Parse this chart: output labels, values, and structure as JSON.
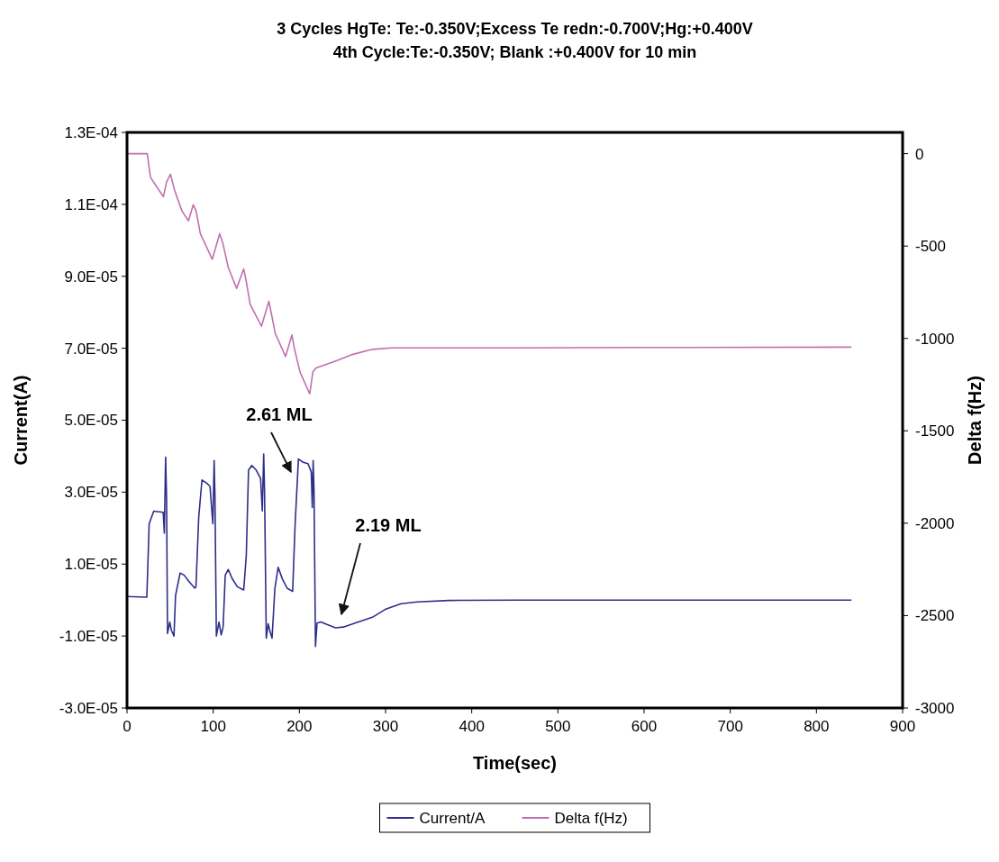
{
  "chart_data": {
    "type": "line",
    "title": "3 Cycles HgTe: Te:-0.350V;Excess Te redn:-0.700V;Hg:+0.400V",
    "subtitle": "4th Cycle:Te:-0.350V; Blank :+0.400V for 10 min",
    "xlabel": "Time(sec)",
    "ylabel": "Current(A)",
    "y2label": "Delta f(Hz)",
    "xlim": [
      0,
      900
    ],
    "xticks": [
      0,
      100,
      200,
      300,
      400,
      500,
      600,
      700,
      800,
      900
    ],
    "ylim": [
      -3e-05,
      0.00013
    ],
    "yticks": [
      {
        "value": -3e-05,
        "label": "-3.0E-05"
      },
      {
        "value": -1e-05,
        "label": "-1.0E-05"
      },
      {
        "value": 1e-05,
        "label": "1.0E-05"
      },
      {
        "value": 3e-05,
        "label": "3.0E-05"
      },
      {
        "value": 5e-05,
        "label": "5.0E-05"
      },
      {
        "value": 7e-05,
        "label": "7.0E-05"
      },
      {
        "value": 9e-05,
        "label": "9.0E-05"
      },
      {
        "value": 0.00011,
        "label": "1.1E-04"
      },
      {
        "value": 0.00013,
        "label": "1.3E-04"
      }
    ],
    "y2lim": [
      -3000,
      115
    ],
    "y2ticks": [
      0,
      -500,
      -1000,
      -1500,
      -2000,
      -2500,
      -3000
    ],
    "legend": "bottom",
    "grid": false,
    "marker": "none",
    "line_style": "solid",
    "annotations": [
      "2.61 ML",
      "2.19 ML"
    ],
    "series": [
      {
        "name": "Current/A",
        "color": "#2e2e8a",
        "x": [
          0,
          23,
          25.7,
          31,
          42,
          43.3,
          44.8,
          45.9,
          47,
          49.6,
          51.5,
          54.5,
          56.3,
          61.6,
          66.4,
          72,
          78.7,
          80,
          83.2,
          87,
          92.5,
          96.3,
          99.6,
          101.1,
          102,
          103.7,
          106.7,
          109.3,
          111.5,
          114,
          117.5,
          122,
          128,
          135.4,
          138.4,
          141,
          144.8,
          150,
          155,
          157,
          158.6,
          159.6,
          161.6,
          163.8,
          166,
          168.3,
          171.6,
          175.4,
          180.2,
          185.8,
          192.2,
          195.1,
          198.9,
          204.5,
          210,
          213.8,
          215,
          216,
          217,
          218.7,
          220.5,
          225,
          232,
          241.8,
          251,
          262.3,
          284.7,
          299.6,
          318,
          337,
          374,
          450,
          550,
          650,
          750,
          840
        ],
        "values": [
          1e-06,
          8e-07,
          2.12e-05,
          2.47e-05,
          2.44e-05,
          1.86e-05,
          3.97e-05,
          2.84e-05,
          -9.3e-06,
          -6.1e-06,
          -8.4e-06,
          -1e-05,
          1.2e-06,
          7.5e-06,
          6.9e-06,
          5.1e-06,
          3.3e-06,
          3.7e-06,
          2.3e-05,
          3.34e-05,
          3.25e-05,
          3.16e-05,
          2.12e-05,
          3.88e-05,
          2.94e-05,
          -1e-05,
          -6.1e-06,
          -9.7e-06,
          -7.5e-06,
          6.9e-06,
          8.5e-06,
          6e-06,
          3.7e-06,
          2.8e-06,
          1.23e-05,
          3.61e-05,
          3.74e-05,
          3.61e-05,
          3.38e-05,
          2.48e-05,
          4.06e-05,
          3.03e-05,
          -1.06e-05,
          -6.6e-06,
          -8.8e-06,
          -1.06e-05,
          3.3e-06,
          9.1e-06,
          5.9e-06,
          3.3e-06,
          2.4e-06,
          2.12e-05,
          3.92e-05,
          3.83e-05,
          3.79e-05,
          3.56e-05,
          2.57e-05,
          3.88e-05,
          3.02e-05,
          -1.29e-05,
          -6.4e-06,
          -6.1e-06,
          -6.8e-06,
          -7.7e-06,
          -7.5e-06,
          -6.6e-06,
          -4.8e-06,
          -2.6e-06,
          -1e-06,
          -5e-07,
          -1e-07,
          0,
          0,
          0,
          0,
          0
        ]
      },
      {
        "name": "Delta f(Hz)",
        "color": "#c070b0",
        "axis": "y2",
        "x": [
          0,
          23.5,
          27.2,
          34.7,
          42.2,
          45.9,
          50.4,
          55.2,
          63.8,
          71.3,
          76.9,
          80.2,
          85.1,
          98.9,
          107.5,
          111.2,
          117.5,
          127.2,
          135.4,
          138,
          142.9,
          156,
          164.6,
          168,
          172,
          184,
          191.4,
          194,
          200.7,
          212,
          215.7,
          219.4,
          243.7,
          262.3,
          284.7,
          307,
          437,
          600,
          840
        ],
        "values": [
          0,
          0,
          -128,
          -181,
          -233,
          -154,
          -111,
          -198,
          -311,
          -363,
          -276,
          -311,
          -433,
          -572,
          -433,
          -485,
          -616,
          -729,
          -624,
          -682,
          -816,
          -934,
          -799,
          -877,
          -973,
          -1098,
          -981,
          -1050,
          -1181,
          -1300,
          -1181,
          -1160,
          -1120,
          -1086,
          -1059,
          -1051,
          -1051,
          -1049,
          -1047
        ]
      }
    ]
  }
}
